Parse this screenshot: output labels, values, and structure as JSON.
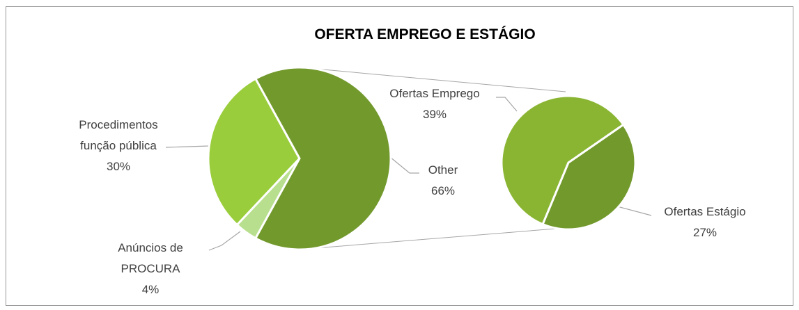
{
  "chart_data": {
    "type": "pie_of_pie",
    "title": "OFERTA EMPREGO E ESTÁGIO",
    "categories": [
      "Procedimentos função pública",
      "Anúncios de PROCURA",
      "Other"
    ],
    "values": [
      30,
      4,
      66
    ],
    "value_labels": [
      "30%",
      "4%",
      "66%"
    ],
    "colors": [
      "#9acd3c",
      "#b8df8d",
      "#72992c"
    ],
    "secondary": {
      "categories": [
        "Ofertas Emprego",
        "Ofertas Estágio"
      ],
      "values": [
        39,
        27
      ],
      "value_labels": [
        "39%",
        "27%"
      ],
      "colors": [
        "#8ab533",
        "#72992c"
      ]
    }
  }
}
